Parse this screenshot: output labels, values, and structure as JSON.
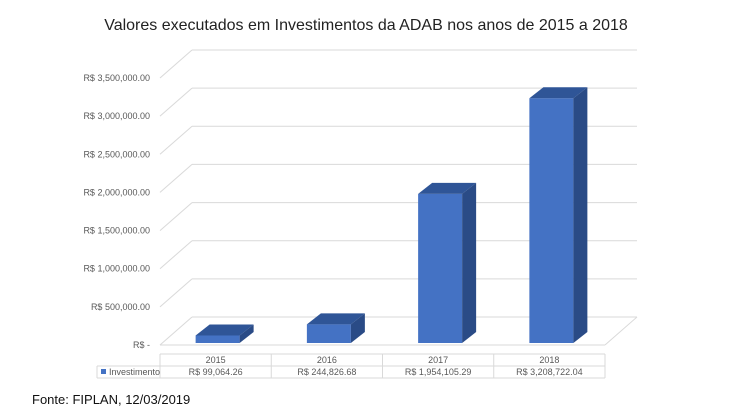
{
  "chart_data": {
    "type": "bar",
    "style": "3d-column-with-data-table",
    "title": "Valores executados em Investimentos da ADAB nos anos de 2015 a 2018",
    "categories": [
      "2015",
      "2016",
      "2017",
      "2018"
    ],
    "series": [
      {
        "name": "Investimento",
        "values": [
          99064.26,
          244826.68,
          1954105.29,
          3208722.04
        ],
        "value_labels": [
          "R$ 99,064.26",
          "R$ 244,826.68",
          "R$ 1,954,105.29",
          "R$ 3,208,722.04"
        ],
        "color": "#4472C4"
      }
    ],
    "y_ticks": [
      {
        "value": 0,
        "label": "R$ -"
      },
      {
        "value": 500000,
        "label": "R$ 500,000.00"
      },
      {
        "value": 1000000,
        "label": "R$ 1,000,000.00"
      },
      {
        "value": 1500000,
        "label": "R$ 1,500,000.00"
      },
      {
        "value": 2000000,
        "label": "R$ 2,000,000.00"
      },
      {
        "value": 2500000,
        "label": "R$ 2,500,000.00"
      },
      {
        "value": 3000000,
        "label": "R$ 3,000,000.00"
      },
      {
        "value": 3500000,
        "label": "R$ 3,500,000.00"
      }
    ],
    "ylim": [
      0,
      3500000
    ],
    "grid": true,
    "legend": "in-data-table"
  },
  "source_note": "Fonte: FIPLAN, 12/03/2019"
}
